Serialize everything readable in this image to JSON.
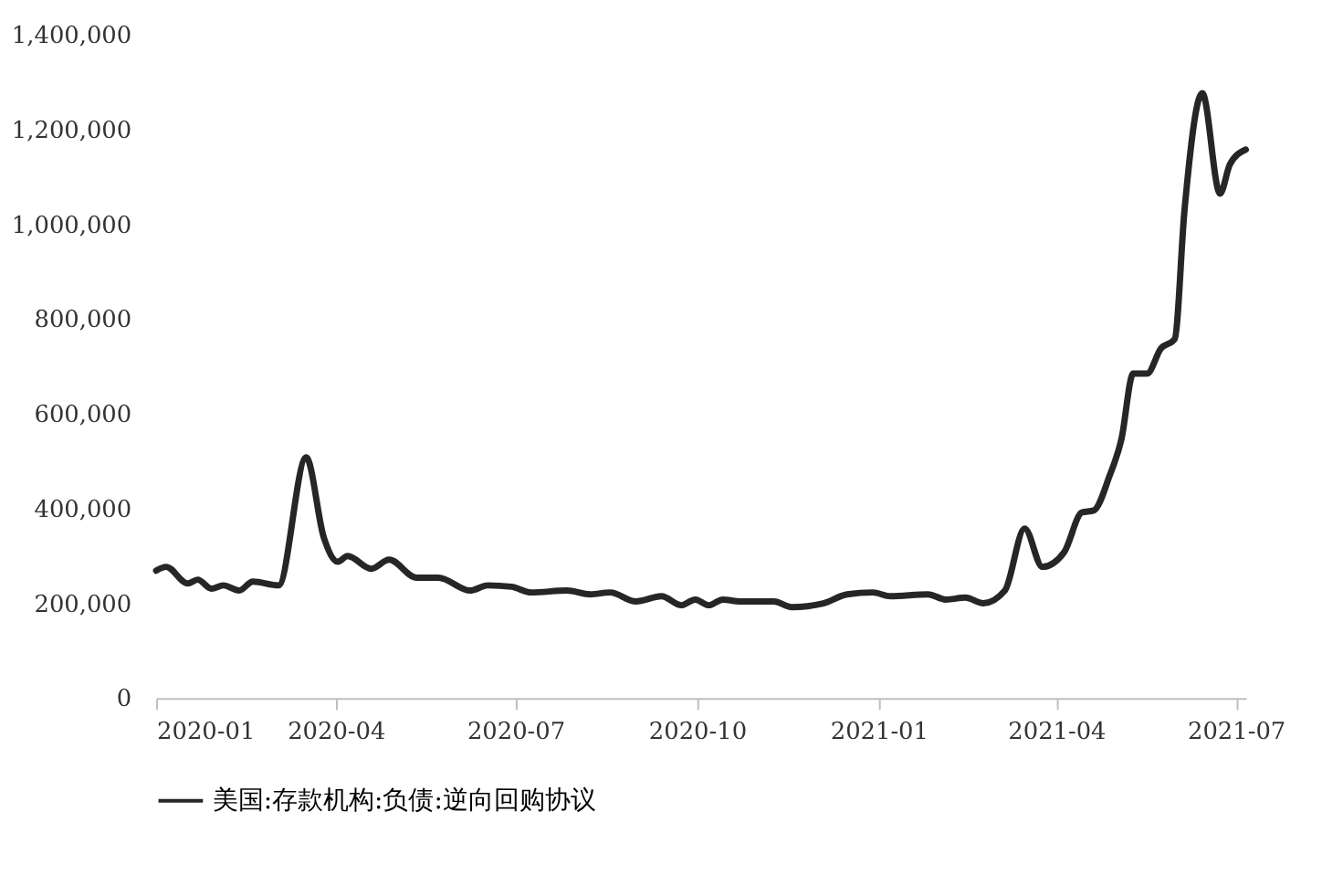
{
  "chart_data": {
    "type": "line",
    "xlim": [
      "2020-01-01",
      "2021-07-06"
    ],
    "xticks": [
      {
        "value": "2020-01-01",
        "label": "2020-01"
      },
      {
        "value": "2020-04-01",
        "label": "2020-04"
      },
      {
        "value": "2020-07-01",
        "label": "2020-07"
      },
      {
        "value": "2020-10-01",
        "label": "2020-10"
      },
      {
        "value": "2021-01-01",
        "label": "2021-01"
      },
      {
        "value": "2021-04-01",
        "label": "2021-04"
      },
      {
        "value": "2021-07-01",
        "label": "2021-07"
      }
    ],
    "ylim": [
      0,
      1400000
    ],
    "yticks": [
      0,
      {
        "value": 200000,
        "label": "200,000"
      },
      {
        "value": 400000,
        "label": "400,000"
      },
      {
        "value": 600000,
        "label": "600,000"
      },
      {
        "value": 800000,
        "label": "800,000"
      },
      {
        "value": 1000000,
        "label": "1,000,000"
      },
      {
        "value": 1200000,
        "label": "1,200,000"
      },
      {
        "value": 1400000,
        "label": "1,400,000"
      }
    ],
    "x": [
      "2020-01-01",
      "2020-01-06",
      "2020-01-17",
      "2020-01-22",
      "2020-01-29",
      "2020-02-04",
      "2020-02-12",
      "2020-02-19",
      "2020-03-03",
      "2020-03-17",
      "2020-03-26",
      "2020-04-02",
      "2020-04-07",
      "2020-04-19",
      "2020-04-28",
      "2020-05-12",
      "2020-05-23",
      "2020-06-08",
      "2020-06-17",
      "2020-06-29",
      "2020-07-09",
      "2020-07-27",
      "2020-08-08",
      "2020-08-18",
      "2020-08-31",
      "2020-09-13",
      "2020-09-23",
      "2020-09-30",
      "2020-10-07",
      "2020-10-14",
      "2020-10-23",
      "2020-11-09",
      "2020-11-18",
      "2020-12-04",
      "2020-12-16",
      "2020-12-29",
      "2021-01-07",
      "2021-01-26",
      "2021-02-04",
      "2021-02-14",
      "2021-02-23",
      "2021-03-06",
      "2021-03-16",
      "2021-03-25",
      "2021-04-05",
      "2021-04-14",
      "2021-04-20",
      "2021-04-28",
      "2021-05-04",
      "2021-05-10",
      "2021-05-17",
      "2021-05-24",
      "2021-05-31",
      "2021-06-05",
      "2021-06-14",
      "2021-06-23",
      "2021-06-28",
      "2021-07-06"
    ],
    "series": [
      {
        "name": "美国:存款机构:负债:逆向回购协议",
        "color": "#262626",
        "values": [
          269000,
          277000,
          242000,
          250000,
          231000,
          238000,
          227000,
          246000,
          238000,
          508000,
          338000,
          288000,
          300000,
          273000,
          292000,
          254000,
          254000,
          227000,
          238000,
          235000,
          223000,
          227000,
          219000,
          223000,
          204000,
          215000,
          196000,
          208000,
          196000,
          208000,
          204000,
          204000,
          192000,
          200000,
          219000,
          223000,
          215000,
          219000,
          208000,
          212000,
          200000,
          227000,
          358000,
          277000,
          308000,
          392000,
          396000,
          469000,
          546000,
          685000,
          685000,
          738000,
          758000,
          1031000,
          1277000,
          1065000,
          1127000,
          1158000
        ]
      }
    ],
    "grid": false,
    "legend": "bottom",
    "marker": "none",
    "line_style": "solid"
  }
}
